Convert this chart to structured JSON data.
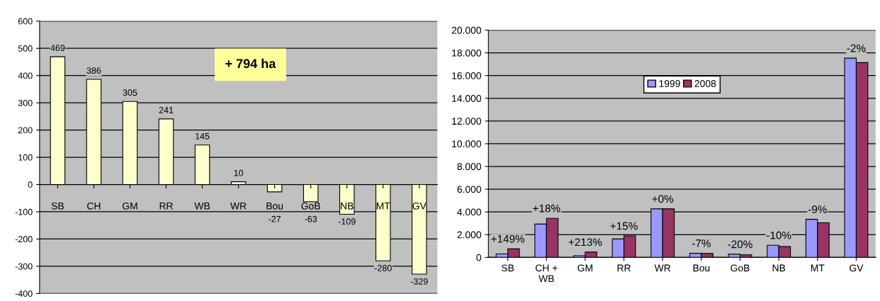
{
  "chart_data": [
    {
      "type": "bar",
      "categories": [
        "SB",
        "CH",
        "GM",
        "RR",
        "WB",
        "WR",
        "Bou",
        "GoB",
        "NB",
        "MT",
        "GV"
      ],
      "values": [
        469,
        386,
        305,
        241,
        145,
        10,
        -27,
        -63,
        -109,
        -280,
        -329
      ],
      "color": "#ffffcc",
      "data_labels": true,
      "ylim": [
        -400,
        600
      ],
      "yticks": [
        -400,
        -300,
        -200,
        -100,
        0,
        100,
        200,
        300,
        400,
        500,
        600
      ],
      "grid": "y",
      "annotations": [
        "+ 794 ha"
      ]
    },
    {
      "type": "bar",
      "categories": [
        "SB",
        "CH +\nWB",
        "GM",
        "RR",
        "WR",
        "Bou",
        "GoB",
        "NB",
        "MT",
        "GV"
      ],
      "series": [
        {
          "name": "1999",
          "color": "#9999ff",
          "values": [
            300,
            2930,
            150,
            1620,
            4270,
            360,
            280,
            1070,
            3350,
            17530
          ]
        },
        {
          "name": "2008",
          "color": "#993366",
          "values": [
            750,
            3440,
            470,
            1890,
            4270,
            340,
            230,
            950,
            3050,
            17140
          ]
        }
      ],
      "ylim": [
        0,
        20000
      ],
      "yticks": [
        {
          "value": 0,
          "label": "0"
        },
        {
          "value": 2000,
          "label": "2.000"
        },
        {
          "value": 4000,
          "label": "4.000"
        },
        {
          "value": 6000,
          "label": "6.000"
        },
        {
          "value": 8000,
          "label": "8.000"
        },
        {
          "value": 10000,
          "label": "10.000"
        },
        {
          "value": 12000,
          "label": "12.000"
        },
        {
          "value": 14000,
          "label": "14.000"
        },
        {
          "value": 16000,
          "label": "16.000"
        },
        {
          "value": 18000,
          "label": "18.000"
        },
        {
          "value": 20000,
          "label": "20.000"
        }
      ],
      "grid": "y",
      "legend": "top",
      "annotations": [
        {
          "text": "+149%",
          "x": "SB",
          "y": 750
        },
        {
          "text": "+18%",
          "x": "CH +\nWB",
          "y": 3440
        },
        {
          "text": "+213%",
          "x": "GM",
          "y": 470
        },
        {
          "text": "+15%",
          "x": "RR",
          "y": 1890
        },
        {
          "text": "+0%",
          "x": "WR",
          "y": 4270
        },
        {
          "text": "-7%",
          "x": "Bou",
          "y": 360
        },
        {
          "text": "-20%",
          "x": "GoB",
          "y": 280
        },
        {
          "text": "-10%",
          "x": "NB",
          "y": 1070
        },
        {
          "text": "-9%",
          "x": "MT",
          "y": 3350
        },
        {
          "text": "-2%",
          "x": "GV",
          "y": 17530
        }
      ]
    }
  ]
}
